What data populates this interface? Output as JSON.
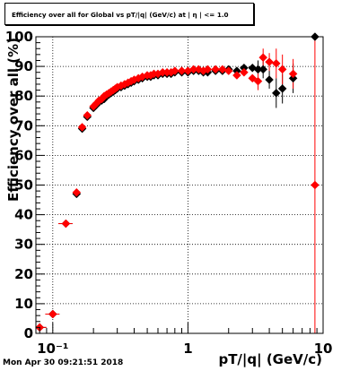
{
  "title": "Efficiency over all for Global vs pT/|q| (GeV/c) at | η | <= 1.0",
  "timestamp": "Mon Apr 30 09:21:51 2018",
  "chart_data": {
    "type": "scatter",
    "xlabel": "pT/|q| (GeV/c)",
    "ylabel": "Efficiency over all (%)",
    "xscale": "log",
    "xlim": [
      0.075,
      10
    ],
    "ylim": [
      0,
      100
    ],
    "xticks": [
      0.1,
      1,
      10
    ],
    "xtick_labels": [
      "10⁻¹",
      "1",
      "10"
    ],
    "yticks": [
      0,
      10,
      20,
      30,
      40,
      50,
      60,
      70,
      80,
      90,
      100
    ],
    "grid": true,
    "series": [
      {
        "color": "#000000",
        "marker": "diamond",
        "x": [
          0.08,
          0.1,
          0.125,
          0.15,
          0.165,
          0.18,
          0.2,
          0.21,
          0.22,
          0.23,
          0.24,
          0.25,
          0.26,
          0.27,
          0.28,
          0.29,
          0.3,
          0.32,
          0.34,
          0.36,
          0.38,
          0.4,
          0.43,
          0.46,
          0.5,
          0.53,
          0.56,
          0.6,
          0.65,
          0.7,
          0.75,
          0.8,
          0.9,
          1.0,
          1.1,
          1.2,
          1.3,
          1.4,
          1.6,
          1.8,
          2.0,
          2.3,
          2.6,
          3.0,
          3.3,
          3.6,
          4.0,
          4.5,
          5.0,
          6.0,
          8.7
        ],
        "y": [
          2,
          6.5,
          37,
          47,
          69,
          73,
          76,
          77,
          78,
          78.5,
          79,
          80,
          80.5,
          81,
          81.5,
          82,
          82.5,
          83,
          83.5,
          84,
          84.5,
          85,
          85.5,
          86,
          86.5,
          86.5,
          87,
          87,
          87.5,
          87.5,
          87.5,
          88,
          88,
          88,
          88.5,
          88.5,
          88,
          88,
          88.5,
          88.5,
          89,
          88.5,
          89.5,
          89.5,
          89,
          89,
          85.5,
          81,
          82.5,
          86,
          100
        ]
      },
      {
        "color": "#ff0000",
        "marker": "diamond",
        "x": [
          0.08,
          0.1,
          0.125,
          0.15,
          0.165,
          0.18,
          0.2,
          0.21,
          0.22,
          0.23,
          0.24,
          0.25,
          0.26,
          0.27,
          0.28,
          0.29,
          0.3,
          0.32,
          0.34,
          0.36,
          0.38,
          0.4,
          0.43,
          0.46,
          0.5,
          0.53,
          0.56,
          0.6,
          0.65,
          0.7,
          0.75,
          0.8,
          0.9,
          1.0,
          1.1,
          1.2,
          1.3,
          1.4,
          1.6,
          1.8,
          2.0,
          2.3,
          2.6,
          3.0,
          3.3,
          3.6,
          4.0,
          4.5,
          5.0,
          6.0,
          8.7
        ],
        "y": [
          2,
          6.5,
          37,
          47.5,
          69.5,
          73.5,
          76.5,
          77.5,
          78.5,
          79,
          80,
          80.5,
          81,
          81.5,
          82,
          82.5,
          83,
          83.5,
          84,
          84.5,
          85,
          85.5,
          86,
          86.5,
          87,
          87,
          87.5,
          87.5,
          88,
          88,
          88,
          88.5,
          88.5,
          88.5,
          89,
          89,
          88.5,
          89,
          89,
          89,
          88.5,
          87,
          88,
          86,
          85,
          93,
          91.5,
          91,
          89,
          87.5,
          50
        ]
      }
    ]
  }
}
